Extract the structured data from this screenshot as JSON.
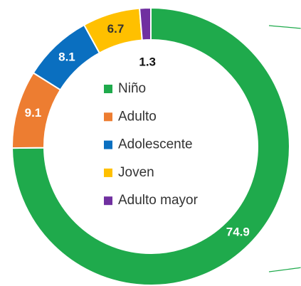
{
  "chart_data": {
    "type": "donut",
    "categories": [
      "Niño",
      "Adulto",
      "Adolescente",
      "Joven",
      "Adulto mayor"
    ],
    "values": [
      74.9,
      9.1,
      8.1,
      6.7,
      1.3
    ],
    "colors": [
      "#1faa4c",
      "#ed7d31",
      "#0a6fc0",
      "#ffc000",
      "#7030a0"
    ],
    "legend": "center"
  }
}
